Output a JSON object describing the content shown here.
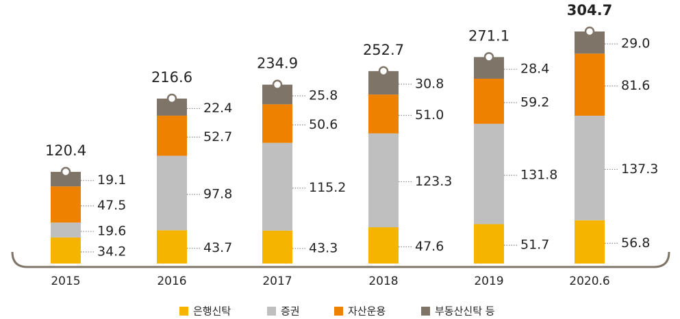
{
  "chart_data": {
    "type": "stacked_bar",
    "categories": [
      "2015",
      "2016",
      "2017",
      "2018",
      "2019",
      "2020.6"
    ],
    "series": [
      {
        "name": "은행신탁",
        "color": "#f5b400",
        "values": [
          34.2,
          43.7,
          43.3,
          47.6,
          51.7,
          56.8
        ]
      },
      {
        "name": "증권",
        "color": "#bfbfbf",
        "values": [
          19.6,
          97.8,
          115.2,
          123.3,
          131.8,
          137.3
        ]
      },
      {
        "name": "자산운용",
        "color": "#ee8200",
        "values": [
          47.5,
          52.7,
          50.6,
          51.0,
          59.2,
          81.6
        ],
        "value_labels": [
          "47.5",
          "52.7",
          "50.6",
          "51.0",
          "59.2",
          "81.6"
        ]
      },
      {
        "name": "부동산신탁 등",
        "color": "#7f7468",
        "values": [
          19.1,
          22.4,
          25.8,
          30.8,
          28.4,
          29.0
        ],
        "value_labels": [
          "19.1",
          "22.4",
          "25.8",
          "30.8",
          "28.4",
          "29.0"
        ]
      }
    ],
    "totals": [
      120.4,
      216.6,
      234.9,
      252.7,
      271.1,
      304.7
    ]
  }
}
